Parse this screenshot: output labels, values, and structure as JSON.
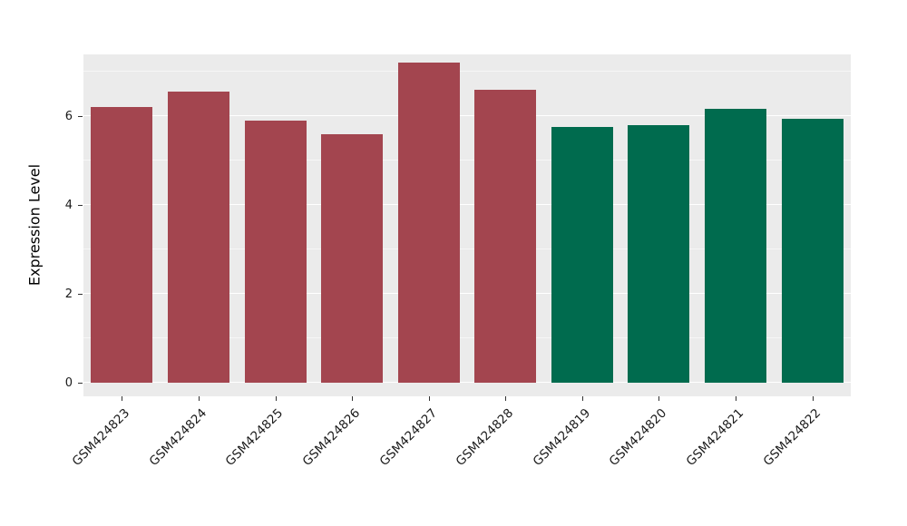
{
  "chart_data": {
    "type": "bar",
    "title": "",
    "xlabel": "",
    "ylabel": "Expression Level",
    "ylim": [
      0,
      7.4
    ],
    "yticks": [
      0,
      2,
      4,
      6
    ],
    "minor_yticks": [
      1,
      3,
      5,
      7
    ],
    "grid": true,
    "legend_position": "none",
    "categories": [
      "GSM424823",
      "GSM424824",
      "GSM424825",
      "GSM424826",
      "GSM424827",
      "GSM424828",
      "GSM424819",
      "GSM424820",
      "GSM424821",
      "GSM424822"
    ],
    "values": [
      6.2,
      6.55,
      5.9,
      5.6,
      7.2,
      6.6,
      5.75,
      5.8,
      6.17,
      5.93
    ],
    "bar_colors": [
      "#A3454F",
      "#A3454F",
      "#A3454F",
      "#A3454F",
      "#A3454F",
      "#A3454F",
      "#006B4E",
      "#006B4E",
      "#006B4E",
      "#006B4E"
    ],
    "panel_bg": "#EBEBEB",
    "grid_color": "#FFFFFF",
    "tick_color": "#333333"
  }
}
